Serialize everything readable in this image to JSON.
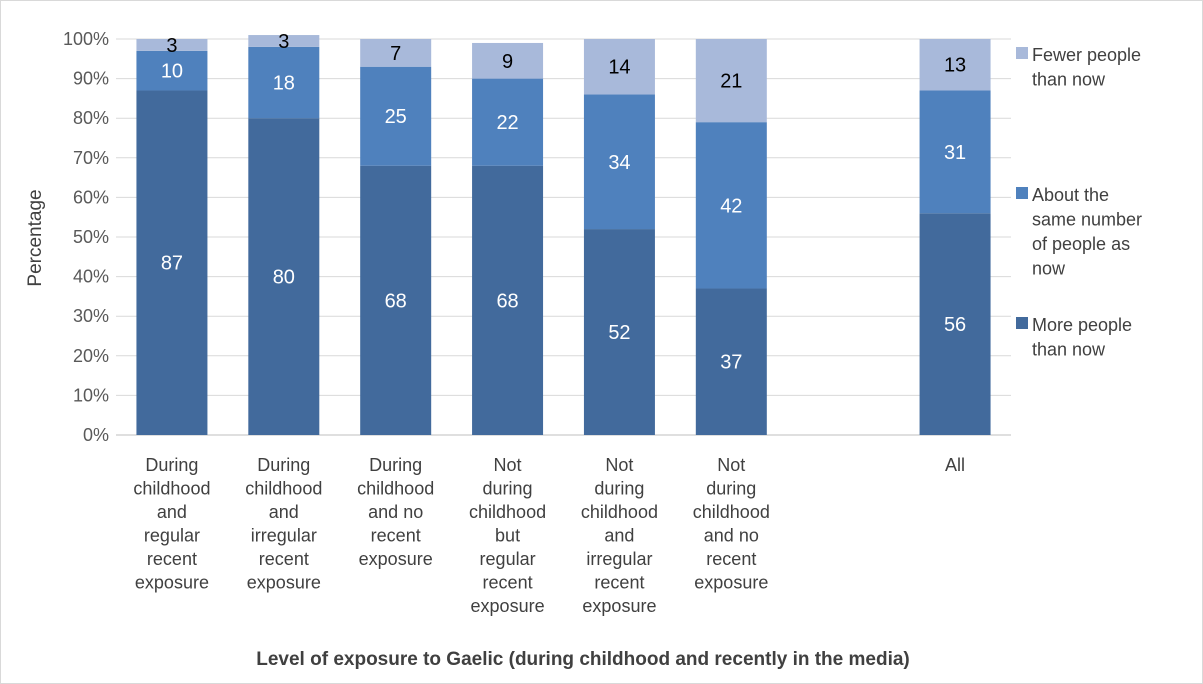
{
  "chart_data": {
    "type": "bar",
    "stacked": true,
    "percent_stacked": true,
    "title": "",
    "xlabel": "Level of exposure to Gaelic (during childhood and recently in the media)",
    "ylabel": "Percentage",
    "ylim": [
      0,
      100
    ],
    "y_ticks": [
      "0%",
      "10%",
      "20%",
      "30%",
      "40%",
      "50%",
      "60%",
      "70%",
      "80%",
      "90%",
      "100%"
    ],
    "grid": true,
    "legend_position": "right",
    "categories": [
      [
        "During",
        "childhood",
        "and",
        "regular",
        "recent",
        "exposure"
      ],
      [
        "During",
        "childhood",
        "and",
        "irregular",
        "recent",
        "exposure"
      ],
      [
        "During",
        "childhood",
        "and no",
        "recent",
        "exposure"
      ],
      [
        "Not",
        "during",
        "childhood",
        "but",
        "regular",
        "recent",
        "exposure"
      ],
      [
        "Not",
        "during",
        "childhood",
        "and",
        "irregular",
        "recent",
        "exposure"
      ],
      [
        "Not",
        "during",
        "childhood",
        "and no",
        "recent",
        "exposure"
      ],
      [],
      [
        "All"
      ]
    ],
    "series": [
      {
        "name": "More people than now",
        "legend_lines": [
          "More people",
          "than now"
        ],
        "color": "#426a9c",
        "label_color": "#ffffff",
        "values": [
          87,
          80,
          68,
          68,
          52,
          37,
          null,
          56
        ]
      },
      {
        "name": "About the same number of people as now",
        "legend_lines": [
          "About the",
          "same number",
          "of people as",
          "now"
        ],
        "color": "#4f81bd",
        "label_color": "#ffffff",
        "values": [
          10,
          18,
          25,
          22,
          34,
          42,
          null,
          31
        ]
      },
      {
        "name": "Fewer people than now",
        "legend_lines": [
          "Fewer people",
          "than now"
        ],
        "color": "#a8b9da",
        "label_color": "#000000",
        "values": [
          3,
          3,
          7,
          9,
          14,
          21,
          null,
          13
        ]
      }
    ]
  },
  "colors": {
    "gridline": "#d9d9d9",
    "axis": "#bfbfbf"
  }
}
